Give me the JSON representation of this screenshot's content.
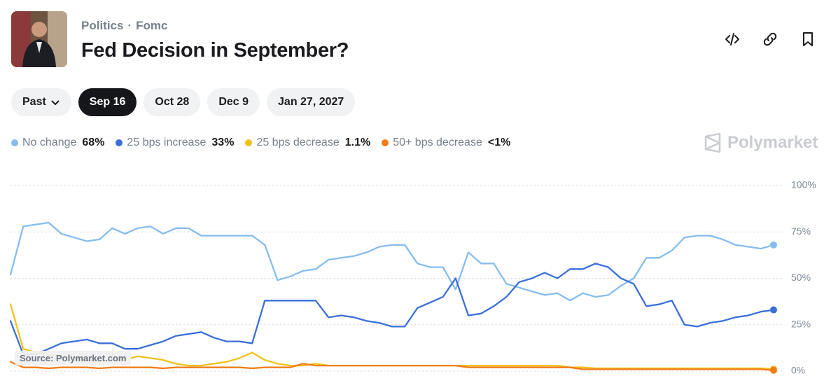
{
  "header": {
    "breadcrumbs": [
      "Politics",
      "Fomc"
    ],
    "title": "Fed Decision in September?"
  },
  "tabs": [
    "Past",
    "Sep 16",
    "Oct 28",
    "Dec 9",
    "Jan 27, 2027"
  ],
  "active_tab": 1,
  "watermark": "Polymarket",
  "source": "Source: Polymarket.com",
  "chart_data": {
    "type": "line",
    "ylim": [
      0,
      100
    ],
    "yticks": [
      {
        "value": 0,
        "label": "0%"
      },
      {
        "value": 25,
        "label": "25%"
      },
      {
        "value": 50,
        "label": "50%"
      },
      {
        "value": 75,
        "label": "75%"
      },
      {
        "value": 100,
        "label": "100%"
      }
    ],
    "grid": true,
    "series": [
      {
        "name": "No change",
        "color": "#86bdf0",
        "current": "68%",
        "values": [
          52,
          78,
          79,
          80,
          74,
          72,
          70,
          71,
          77,
          74,
          77,
          78,
          74,
          77,
          77,
          73,
          73,
          73,
          73,
          73,
          68,
          49,
          51,
          54,
          55,
          60,
          61,
          62,
          64,
          67,
          68,
          68,
          58,
          56,
          56,
          44,
          64,
          58,
          58,
          47,
          45,
          43,
          41,
          42,
          38,
          42,
          40,
          41,
          46,
          50,
          61,
          61,
          65,
          72,
          73,
          73,
          71,
          68,
          67,
          66,
          68
        ]
      },
      {
        "name": "25 bps increase",
        "color": "#3b6fd8",
        "current": "33%",
        "values": [
          27,
          9,
          9,
          12,
          15,
          16,
          17,
          15,
          15,
          12,
          12,
          14,
          16,
          19,
          20,
          21,
          18,
          16,
          16,
          15,
          38,
          38,
          38,
          38,
          38,
          29,
          30,
          29,
          27,
          26,
          24,
          24,
          34,
          37,
          40,
          50,
          30,
          31,
          35,
          40,
          48,
          50,
          53,
          50,
          55,
          55,
          58,
          56,
          50,
          47,
          35,
          36,
          38,
          25,
          24,
          26,
          27,
          29,
          30,
          32,
          33
        ]
      },
      {
        "name": "25 bps decrease",
        "color": "#f2c21b",
        "current": "1.1%",
        "values": [
          36,
          12,
          10,
          9,
          8,
          7,
          6,
          5,
          6,
          6,
          8,
          7,
          6,
          4,
          3,
          3,
          4,
          5,
          7,
          10,
          6,
          4,
          3,
          3,
          4,
          3,
          3,
          3,
          3,
          3,
          3,
          3,
          3,
          3,
          3,
          3,
          3,
          3,
          3,
          3,
          3,
          3,
          3,
          3,
          2,
          2,
          1.5,
          1.5,
          1.5,
          1.5,
          1.5,
          1.5,
          1.5,
          1.5,
          1.5,
          1.5,
          1.5,
          1.5,
          1.5,
          1.5,
          1.1
        ]
      },
      {
        "name": "50+ bps decrease",
        "color": "#f07d1a",
        "current": "<1%",
        "values": [
          5,
          2,
          2,
          1.5,
          2,
          2,
          2,
          1.5,
          2,
          2,
          2,
          2,
          1.5,
          2,
          2,
          2,
          2,
          2,
          2,
          1.5,
          2,
          2,
          2,
          4,
          3,
          3,
          3,
          3,
          3,
          3,
          3,
          3,
          3,
          3,
          3,
          3,
          2,
          2,
          2,
          2,
          2,
          2,
          2,
          2,
          2,
          1,
          1,
          1,
          1,
          1,
          1,
          1,
          1,
          1,
          1,
          1,
          1,
          1,
          1,
          1,
          0.5
        ]
      }
    ]
  }
}
